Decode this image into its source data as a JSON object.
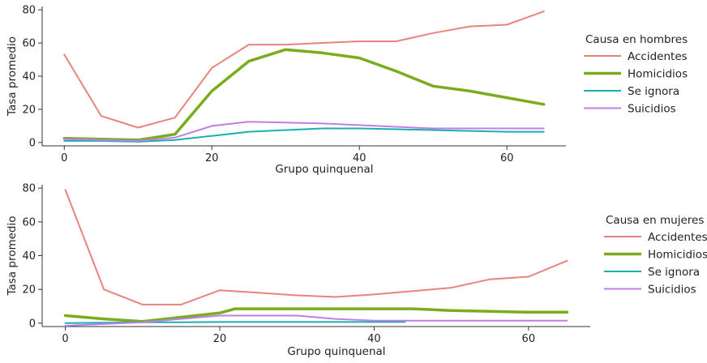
{
  "chart_data": [
    {
      "type": "line",
      "xlabel": "Grupo quinquenal",
      "ylabel": "Tasa promedio",
      "xlim": [
        -3,
        68
      ],
      "ylim": [
        -2,
        82
      ],
      "xticks": [
        0,
        20,
        40,
        60
      ],
      "yticks": [
        0,
        20,
        40,
        60,
        80
      ],
      "legend_title": "Causa en hombres",
      "series": [
        {
          "name": "Accidentes",
          "color": "#e8847a",
          "width": 2,
          "x": [
            0,
            5,
            10,
            15,
            20,
            25,
            30,
            35,
            40,
            45,
            50,
            55,
            60,
            65
          ],
          "y": [
            53,
            16,
            9,
            15,
            45,
            59,
            59,
            60,
            61,
            61,
            66,
            70,
            71,
            79
          ]
        },
        {
          "name": "Homicidios",
          "color": "#7aad1e",
          "width": 3.5,
          "x": [
            0,
            5,
            10,
            15,
            20,
            25,
            30,
            35,
            40,
            45,
            50,
            55,
            60,
            65
          ],
          "y": [
            2.5,
            2,
            1.5,
            5,
            31,
            49,
            56,
            54,
            51,
            43,
            34,
            31,
            27,
            23
          ]
        },
        {
          "name": "Se ignora",
          "color": "#1aafb0",
          "width": 2,
          "x": [
            0,
            5,
            10,
            15,
            20,
            25,
            30,
            35,
            40,
            45,
            50,
            55,
            60,
            65
          ],
          "y": [
            1,
            1,
            0.5,
            1.5,
            4,
            6.5,
            7.5,
            8.5,
            8.5,
            8,
            7.5,
            7,
            6.5,
            6.5
          ]
        },
        {
          "name": "Suicidios",
          "color": "#c27ee8",
          "width": 2,
          "x": [
            0,
            5,
            10,
            15,
            20,
            25,
            30,
            35,
            40,
            45,
            50,
            55,
            60,
            65
          ],
          "y": [
            2,
            1.5,
            1,
            3,
            10,
            12.5,
            12,
            11.5,
            10.5,
            9.5,
            8.5,
            8.5,
            8.5,
            8.5
          ]
        }
      ]
    },
    {
      "type": "line",
      "xlabel": "Grupo quinquenal",
      "ylabel": "Tasa promedio",
      "xlim": [
        -3,
        68
      ],
      "ylim": [
        -2,
        82
      ],
      "xticks": [
        0,
        20,
        40,
        60
      ],
      "yticks": [
        0,
        20,
        40,
        60,
        80
      ],
      "legend_title": "Causa en mujeres",
      "series": [
        {
          "name": "Accidentes",
          "color": "#e8847a",
          "width": 2,
          "x": [
            0,
            5,
            10,
            15,
            20,
            25,
            30,
            35,
            40,
            45,
            50,
            55,
            60,
            65
          ],
          "y": [
            79,
            20,
            11,
            11,
            19.5,
            18,
            16.5,
            15.5,
            17,
            19,
            21,
            26,
            27.5,
            37
          ]
        },
        {
          "name": "Homicidios",
          "color": "#7aad1e",
          "width": 3.5,
          "x": [
            0,
            5,
            10,
            15,
            20,
            22,
            25,
            30,
            35,
            40,
            45,
            50,
            55,
            60,
            65
          ],
          "y": [
            4.5,
            2.5,
            1,
            3.5,
            6,
            8.5,
            8.5,
            8.5,
            8.5,
            8.5,
            8.5,
            7.5,
            7,
            6.5,
            6.5
          ]
        },
        {
          "name": "Se ignora",
          "color": "#1aafb0",
          "width": 2,
          "x": [
            0,
            5,
            10,
            15,
            20,
            25,
            30,
            35,
            40,
            44
          ],
          "y": [
            0,
            0.3,
            0.5,
            0.5,
            0.7,
            0.7,
            0.7,
            0.7,
            0.7,
            0.7
          ]
        },
        {
          "name": "Suicidios",
          "color": "#c27ee8",
          "width": 2,
          "x": [
            0,
            5,
            10,
            15,
            20,
            25,
            30,
            35,
            40,
            45,
            50,
            55,
            60,
            65
          ],
          "y": [
            -1.5,
            -0.5,
            0.5,
            2.5,
            4.5,
            4.5,
            4.5,
            2.5,
            1.5,
            1.5,
            1.5,
            1.5,
            1.5,
            1.5
          ]
        }
      ]
    }
  ]
}
